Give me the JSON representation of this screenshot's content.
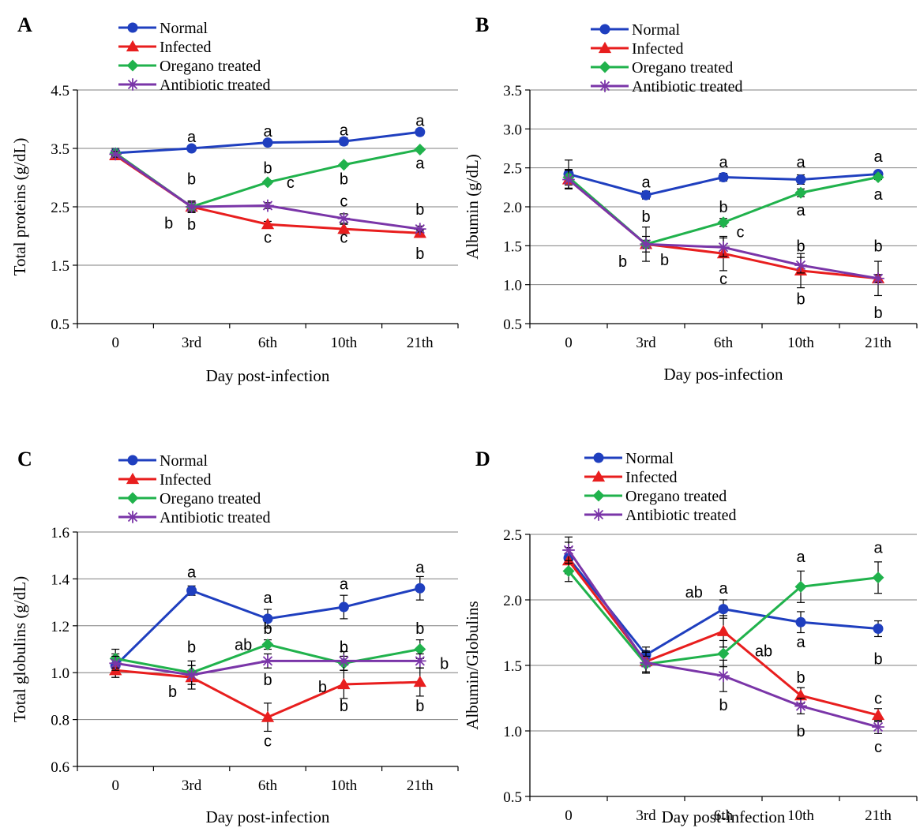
{
  "legend_entries": [
    "Normal",
    "Infected",
    "Oregano treated",
    "Antibiotic treated"
  ],
  "series_style": {
    "Normal": {
      "color": "#1f3fbf",
      "marker": "circle"
    },
    "Infected": {
      "color": "#e81e1e",
      "marker": "triangle"
    },
    "Oregano treated": {
      "color": "#20b24c",
      "marker": "diamond"
    },
    "Antibiotic treated": {
      "color": "#7a35a8",
      "marker": "star"
    }
  },
  "chart_data": [
    {
      "panel_label": "A",
      "type": "line",
      "categories": [
        "0",
        "3rd",
        "6th",
        "10th",
        "21th"
      ],
      "xlabel": "Day post-infection",
      "ylabel": "Total proteins (g/dL)",
      "ylim": [
        0.5,
        4.5
      ],
      "yticks": [
        "0.5",
        "1.5",
        "2.5",
        "3.5",
        "4.5"
      ],
      "grid": "horizontal",
      "legend": "top-left",
      "series": [
        {
          "name": "Normal",
          "values": [
            3.42,
            3.5,
            3.6,
            3.62,
            3.78
          ],
          "errors": [
            0.08,
            0.03,
            0.03,
            0.06,
            0.05
          ]
        },
        {
          "name": "Infected",
          "values": [
            3.38,
            2.5,
            2.2,
            2.12,
            2.05
          ],
          "errors": [
            0.05,
            0.1,
            0.05,
            0.08,
            0.05
          ]
        },
        {
          "name": "Oregano treated",
          "values": [
            3.42,
            2.5,
            2.92,
            3.22,
            3.48
          ],
          "errors": [
            0.05,
            0.05,
            0.03,
            0.03,
            0.03
          ]
        },
        {
          "name": "Antibiotic treated",
          "values": [
            3.4,
            2.5,
            2.52,
            2.3,
            2.12
          ],
          "errors": [
            0.05,
            0.08,
            0.05,
            0.08,
            0.05
          ]
        }
      ],
      "annotations": [
        {
          "text": "a",
          "x": "3rd",
          "y": 3.7
        },
        {
          "text": "a",
          "x": "6th",
          "y": 3.8
        },
        {
          "text": "a",
          "x": "10th",
          "y": 3.82
        },
        {
          "text": "a",
          "x": "21th",
          "y": 3.98
        },
        {
          "text": "b",
          "x": "3rd",
          "y": 2.98
        },
        {
          "text": "b",
          "x": "3rd",
          "y": 2.2
        },
        {
          "text": "b",
          "x": "3rd",
          "y": 2.22,
          "dx": -0.3
        },
        {
          "text": "b",
          "x": "6th",
          "y": 3.17
        },
        {
          "text": "c",
          "x": "6th",
          "y": 2.92,
          "dx": 0.3
        },
        {
          "text": "c",
          "x": "6th",
          "y": 1.98
        },
        {
          "text": "b",
          "x": "10th",
          "y": 2.98
        },
        {
          "text": "c",
          "x": "10th",
          "y": 2.6
        },
        {
          "text": "c",
          "x": "10th",
          "y": 1.98
        },
        {
          "text": "a",
          "x": "21th",
          "y": 3.25
        },
        {
          "text": "b",
          "x": "21th",
          "y": 2.46
        },
        {
          "text": "b",
          "x": "21th",
          "y": 1.7
        }
      ]
    },
    {
      "panel_label": "B",
      "type": "line",
      "categories": [
        "0",
        "3rd",
        "6th",
        "10th",
        "21th"
      ],
      "xlabel": "Day pos-infection",
      "ylabel": "Albumin (g/dL)",
      "ylim": [
        0.5,
        3.5
      ],
      "yticks": [
        "0.5",
        "1.0",
        "1.5",
        "2.0",
        "2.5",
        "3.0",
        "3.5"
      ],
      "grid": "horizontal",
      "legend": "top-left",
      "series": [
        {
          "name": "Normal",
          "values": [
            2.42,
            2.15,
            2.38,
            2.35,
            2.42
          ],
          "errors": [
            0.18,
            0.05,
            0.05,
            0.06,
            0.03
          ]
        },
        {
          "name": "Infected",
          "values": [
            2.35,
            1.52,
            1.4,
            1.18,
            1.08
          ],
          "errors": [
            0.12,
            0.22,
            0.22,
            0.22,
            0.22
          ]
        },
        {
          "name": "Oregano treated",
          "values": [
            2.38,
            1.52,
            1.8,
            2.18,
            2.38
          ],
          "errors": [
            0.1,
            0.05,
            0.05,
            0.05,
            0.03
          ]
        },
        {
          "name": "Antibiotic treated",
          "values": [
            2.35,
            1.52,
            1.48,
            1.25,
            1.08
          ],
          "errors": [
            0.12,
            0.1,
            0.12,
            0.1,
            0.05
          ]
        }
      ],
      "annotations": [
        {
          "text": "a",
          "x": "3rd",
          "y": 2.32
        },
        {
          "text": "a",
          "x": "6th",
          "y": 2.58
        },
        {
          "text": "a",
          "x": "10th",
          "y": 2.58
        },
        {
          "text": "a",
          "x": "21th",
          "y": 2.65
        },
        {
          "text": "b",
          "x": "3rd",
          "y": 1.88
        },
        {
          "text": "b",
          "x": "3rd",
          "y": 1.3,
          "dx": -0.3
        },
        {
          "text": "b",
          "x": "3rd",
          "y": 1.32,
          "dx": 0.24
        },
        {
          "text": "b",
          "x": "6th",
          "y": 2.0
        },
        {
          "text": "c",
          "x": "6th",
          "y": 1.68,
          "dx": 0.22
        },
        {
          "text": "c",
          "x": "6th",
          "y": 1.08
        },
        {
          "text": "a",
          "x": "10th",
          "y": 1.96
        },
        {
          "text": "b",
          "x": "10th",
          "y": 1.5
        },
        {
          "text": "b",
          "x": "10th",
          "y": 0.82
        },
        {
          "text": "a",
          "x": "21th",
          "y": 2.16
        },
        {
          "text": "b",
          "x": "21th",
          "y": 1.5
        },
        {
          "text": "b",
          "x": "21th",
          "y": 0.64
        }
      ]
    },
    {
      "panel_label": "C",
      "type": "line",
      "categories": [
        "0",
        "3rd",
        "6th",
        "10th",
        "21th"
      ],
      "xlabel": "Day post-infection",
      "ylabel": "Total globulins (g/dL)",
      "ylim": [
        0.6,
        1.6
      ],
      "yticks": [
        "0.6",
        "0.8",
        "1.0",
        "1.2",
        "1.4",
        "1.6"
      ],
      "grid": "horizontal",
      "legend": "top-left",
      "series": [
        {
          "name": "Normal",
          "values": [
            1.03,
            1.35,
            1.23,
            1.28,
            1.36
          ],
          "errors": [
            0.05,
            0.02,
            0.04,
            0.05,
            0.05
          ]
        },
        {
          "name": "Infected",
          "values": [
            1.01,
            0.98,
            0.81,
            0.95,
            0.96
          ],
          "errors": [
            0.03,
            0.05,
            0.06,
            0.06,
            0.06
          ]
        },
        {
          "name": "Oregano treated",
          "values": [
            1.06,
            1.0,
            1.12,
            1.04,
            1.1
          ],
          "errors": [
            0.04,
            0.05,
            0.02,
            0.03,
            0.04
          ]
        },
        {
          "name": "Antibiotic treated",
          "values": [
            1.04,
            0.99,
            1.05,
            1.05,
            1.05
          ],
          "errors": [
            0.03,
            0.04,
            0.03,
            0.04,
            0.03
          ]
        }
      ],
      "annotations": [
        {
          "text": "a",
          "x": "3rd",
          "y": 1.43
        },
        {
          "text": "a",
          "x": "6th",
          "y": 1.32
        },
        {
          "text": "a",
          "x": "10th",
          "y": 1.38
        },
        {
          "text": "a",
          "x": "21th",
          "y": 1.45
        },
        {
          "text": "b",
          "x": "3rd",
          "y": 1.11
        },
        {
          "text": "b",
          "x": "3rd",
          "y": 0.92,
          "dx": -0.25
        },
        {
          "text": "b",
          "x": "6th",
          "y": 1.19
        },
        {
          "text": "ab",
          "x": "6th",
          "y": 1.12,
          "dx": -0.32
        },
        {
          "text": "b",
          "x": "6th",
          "y": 0.97
        },
        {
          "text": "c",
          "x": "6th",
          "y": 0.71
        },
        {
          "text": "b",
          "x": "10th",
          "y": 1.11
        },
        {
          "text": "b",
          "x": "10th",
          "y": 0.94,
          "dx": -0.28
        },
        {
          "text": "b",
          "x": "10th",
          "y": 0.86
        },
        {
          "text": "b",
          "x": "21th",
          "y": 1.19
        },
        {
          "text": "b",
          "x": "21th",
          "y": 1.04,
          "dx": 0.32
        },
        {
          "text": "b",
          "x": "21th",
          "y": 0.86
        }
      ]
    },
    {
      "panel_label": "D",
      "type": "line",
      "categories": [
        "0",
        "3rd",
        "6th",
        "10th",
        "21th"
      ],
      "xlabel": "Day post-infection",
      "ylabel": "Albumin/Globulins",
      "ylim": [
        0.5,
        2.5
      ],
      "yticks": [
        "0.5",
        "1.0",
        "1.5",
        "2.0",
        "2.5"
      ],
      "grid": "horizontal",
      "legend": "top-left",
      "series": [
        {
          "name": "Normal",
          "values": [
            2.32,
            1.58,
            1.93,
            1.83,
            1.78
          ],
          "errors": [
            0.12,
            0.06,
            0.07,
            0.08,
            0.06
          ]
        },
        {
          "name": "Infected",
          "values": [
            2.3,
            1.53,
            1.76,
            1.27,
            1.12
          ],
          "errors": [
            0.1,
            0.08,
            0.12,
            0.06,
            0.05
          ]
        },
        {
          "name": "Oregano treated",
          "values": [
            2.22,
            1.51,
            1.59,
            2.1,
            2.17
          ],
          "errors": [
            0.08,
            0.06,
            0.1,
            0.12,
            0.12
          ]
        },
        {
          "name": "Antibiotic treated",
          "values": [
            2.38,
            1.52,
            1.42,
            1.19,
            1.03
          ],
          "errors": [
            0.1,
            0.08,
            0.12,
            0.06,
            0.05
          ]
        }
      ],
      "annotations": [
        {
          "text": "ab",
          "x": "6th",
          "y": 2.06,
          "dx": -0.38
        },
        {
          "text": "a",
          "x": "6th",
          "y": 2.09
        },
        {
          "text": "ab",
          "x": "6th",
          "y": 1.61,
          "dx": 0.52
        },
        {
          "text": "b",
          "x": "6th",
          "y": 1.2
        },
        {
          "text": "a",
          "x": "10th",
          "y": 2.33
        },
        {
          "text": "a",
          "x": "10th",
          "y": 1.68
        },
        {
          "text": "b",
          "x": "10th",
          "y": 1.41
        },
        {
          "text": "b",
          "x": "10th",
          "y": 1.0
        },
        {
          "text": "a",
          "x": "21th",
          "y": 2.4
        },
        {
          "text": "b",
          "x": "21th",
          "y": 1.55
        },
        {
          "text": "c",
          "x": "21th",
          "y": 1.25
        },
        {
          "text": "c",
          "x": "21th",
          "y": 0.88
        }
      ]
    }
  ]
}
